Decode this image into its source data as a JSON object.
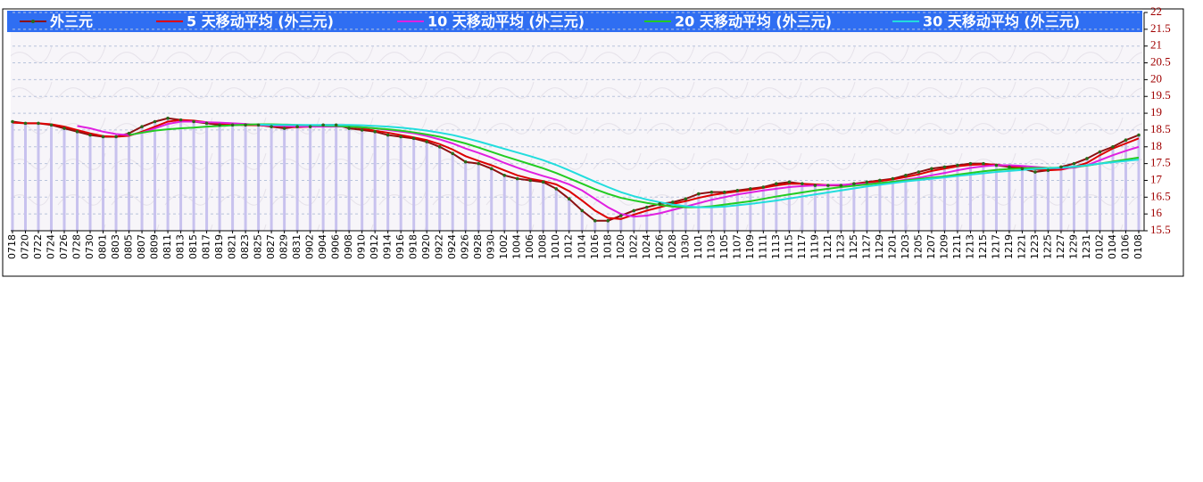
{
  "chart_data": {
    "type": "line",
    "categories": [
      "0718",
      "0720",
      "0722",
      "0724",
      "0726",
      "0728",
      "0730",
      "0801",
      "0803",
      "0805",
      "0807",
      "0809",
      "0811",
      "0813",
      "0815",
      "0817",
      "0819",
      "0821",
      "0823",
      "0825",
      "0827",
      "0829",
      "0831",
      "0902",
      "0904",
      "0906",
      "0908",
      "0910",
      "0912",
      "0914",
      "0916",
      "0918",
      "0920",
      "0922",
      "0924",
      "0926",
      "0928",
      "0930",
      "1002",
      "1004",
      "1006",
      "1008",
      "1010",
      "1012",
      "1014",
      "1016",
      "1018",
      "1020",
      "1022",
      "1024",
      "1026",
      "1028",
      "1030",
      "1101",
      "1103",
      "1105",
      "1107",
      "1109",
      "1111",
      "1113",
      "1115",
      "1117",
      "1119",
      "1121",
      "1123",
      "1125",
      "1127",
      "1129",
      "1201",
      "1203",
      "1205",
      "1207",
      "1209",
      "1211",
      "1213",
      "1215",
      "1217",
      "1219",
      "1221",
      "1223",
      "1225",
      "1227",
      "1229",
      "1231",
      "0102",
      "0104",
      "0106",
      "0108"
    ],
    "series": [
      {
        "name": "外三元",
        "color": "#8b1010",
        "values": [
          18.75,
          18.7,
          18.7,
          18.65,
          18.55,
          18.45,
          18.35,
          18.3,
          18.3,
          18.4,
          18.6,
          18.75,
          18.85,
          18.8,
          18.75,
          18.7,
          18.65,
          18.65,
          18.65,
          18.65,
          18.6,
          18.55,
          18.6,
          18.6,
          18.65,
          18.65,
          18.55,
          18.5,
          18.45,
          18.35,
          18.3,
          18.25,
          18.15,
          18.0,
          17.8,
          17.55,
          17.5,
          17.35,
          17.15,
          17.05,
          17.0,
          16.95,
          16.75,
          16.45,
          16.1,
          15.8,
          15.8,
          15.95,
          16.1,
          16.2,
          16.3,
          16.35,
          16.45,
          16.6,
          16.65,
          16.65,
          16.7,
          16.75,
          16.8,
          16.9,
          16.95,
          16.9,
          16.85,
          16.85,
          16.85,
          16.9,
          16.95,
          17.0,
          17.05,
          17.15,
          17.25,
          17.35,
          17.4,
          17.45,
          17.5,
          17.5,
          17.45,
          17.4,
          17.35,
          17.25,
          17.3,
          17.4,
          17.5,
          17.65,
          17.85,
          18.0,
          18.2,
          18.35
        ]
      },
      {
        "name": "5 天移动平均 (外三元)",
        "color": "#dd0000",
        "values": [
          18.72,
          18.7,
          18.7,
          18.67,
          18.6,
          18.5,
          18.4,
          18.32,
          18.3,
          18.33,
          18.45,
          18.6,
          18.75,
          18.8,
          18.78,
          18.73,
          18.7,
          18.67,
          18.65,
          18.64,
          18.62,
          18.6,
          18.58,
          18.6,
          18.62,
          18.63,
          18.6,
          18.55,
          18.48,
          18.42,
          18.35,
          18.28,
          18.2,
          18.08,
          17.92,
          17.72,
          17.58,
          17.45,
          17.3,
          17.15,
          17.05,
          16.98,
          16.88,
          16.68,
          16.4,
          16.1,
          15.88,
          15.85,
          15.98,
          16.1,
          16.2,
          16.3,
          16.38,
          16.48,
          16.56,
          16.62,
          16.67,
          16.72,
          16.78,
          16.85,
          16.9,
          16.9,
          16.88,
          16.86,
          16.86,
          16.88,
          16.93,
          16.98,
          17.03,
          17.1,
          17.18,
          17.28,
          17.35,
          17.42,
          17.46,
          17.48,
          17.47,
          17.43,
          17.38,
          17.33,
          17.3,
          17.32,
          17.4,
          17.52,
          17.75,
          17.95,
          18.1,
          18.25
        ]
      },
      {
        "name": "10 天移动平均 (外三元)",
        "color": "#e020e0",
        "values": [
          null,
          null,
          null,
          null,
          null,
          18.62,
          18.55,
          18.45,
          18.38,
          18.35,
          18.42,
          18.55,
          18.68,
          18.75,
          18.75,
          18.73,
          18.72,
          18.7,
          18.68,
          18.65,
          18.63,
          18.62,
          18.6,
          18.6,
          18.6,
          18.6,
          18.6,
          18.58,
          18.55,
          18.5,
          18.45,
          18.4,
          18.32,
          18.22,
          18.1,
          17.95,
          17.82,
          17.68,
          17.52,
          17.38,
          17.25,
          17.13,
          17.02,
          16.88,
          16.7,
          16.45,
          16.2,
          16.0,
          15.92,
          15.95,
          16.02,
          16.12,
          16.22,
          16.32,
          16.42,
          16.5,
          16.58,
          16.64,
          16.7,
          16.75,
          16.8,
          16.83,
          16.85,
          16.86,
          16.87,
          16.88,
          16.9,
          16.92,
          16.96,
          17.02,
          17.08,
          17.15,
          17.22,
          17.3,
          17.37,
          17.42,
          17.45,
          17.45,
          17.43,
          17.4,
          17.37,
          17.36,
          17.38,
          17.45,
          17.6,
          17.75,
          17.88,
          18.0
        ]
      },
      {
        "name": "20 天移动平均 (外三元)",
        "color": "#22cc22",
        "values": [
          null,
          null,
          null,
          null,
          null,
          null,
          null,
          null,
          null,
          18.35,
          18.42,
          18.48,
          18.52,
          18.55,
          18.57,
          18.6,
          18.62,
          18.64,
          18.66,
          18.67,
          18.67,
          18.66,
          18.65,
          18.64,
          18.63,
          18.62,
          18.6,
          18.58,
          18.55,
          18.52,
          18.48,
          18.43,
          18.37,
          18.3,
          18.2,
          18.1,
          17.98,
          17.85,
          17.72,
          17.6,
          17.48,
          17.36,
          17.22,
          17.06,
          16.9,
          16.74,
          16.6,
          16.48,
          16.4,
          16.33,
          16.27,
          16.22,
          16.2,
          16.2,
          16.23,
          16.28,
          16.33,
          16.38,
          16.45,
          16.52,
          16.58,
          16.64,
          16.7,
          16.75,
          16.8,
          16.84,
          16.88,
          16.92,
          16.96,
          17.0,
          17.04,
          17.08,
          17.12,
          17.17,
          17.22,
          17.27,
          17.31,
          17.34,
          17.36,
          17.37,
          17.37,
          17.38,
          17.4,
          17.44,
          17.5,
          17.56,
          17.62,
          17.68
        ]
      },
      {
        "name": "30 天移动平均 (外三元)",
        "color": "#22dddd",
        "values": [
          null,
          null,
          null,
          null,
          null,
          null,
          null,
          null,
          null,
          null,
          null,
          null,
          null,
          null,
          null,
          null,
          null,
          null,
          null,
          18.66,
          18.65,
          18.65,
          18.65,
          18.65,
          18.65,
          18.65,
          18.65,
          18.64,
          18.62,
          18.6,
          18.57,
          18.53,
          18.48,
          18.42,
          18.35,
          18.26,
          18.16,
          18.05,
          17.94,
          17.83,
          17.72,
          17.6,
          17.46,
          17.3,
          17.13,
          16.96,
          16.8,
          16.65,
          16.53,
          16.43,
          16.35,
          16.28,
          16.23,
          16.2,
          16.2,
          16.22,
          16.26,
          16.3,
          16.35,
          16.4,
          16.46,
          16.52,
          16.58,
          16.64,
          16.7,
          16.76,
          16.82,
          16.87,
          16.92,
          16.97,
          17.01,
          17.05,
          17.09,
          17.13,
          17.17,
          17.21,
          17.25,
          17.28,
          17.31,
          17.34,
          17.36,
          17.38,
          17.41,
          17.45,
          17.5,
          17.54,
          17.58,
          17.62
        ]
      }
    ],
    "ylim": [
      15.5,
      22
    ],
    "yticks": [
      15.5,
      16,
      16.5,
      17,
      17.5,
      18,
      18.5,
      19,
      19.5,
      20,
      20.5,
      21,
      21.5,
      22
    ],
    "grid": true,
    "legend": "top"
  }
}
